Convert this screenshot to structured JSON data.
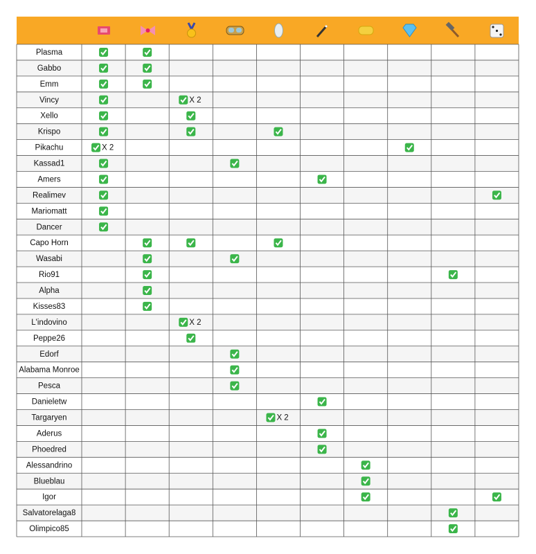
{
  "table": {
    "rows": [
      {
        "name": "Plasma",
        "cells": [
          true,
          true,
          null,
          null,
          null,
          null,
          null,
          null,
          null,
          null
        ]
      },
      {
        "name": "Gabbo",
        "cells": [
          true,
          true,
          null,
          null,
          null,
          null,
          null,
          null,
          null,
          null
        ]
      },
      {
        "name": "Emm",
        "cells": [
          true,
          true,
          null,
          null,
          null,
          null,
          null,
          null,
          null,
          null
        ]
      },
      {
        "name": "Vincy",
        "cells": [
          true,
          null,
          "X 2",
          null,
          null,
          null,
          null,
          null,
          null,
          null
        ]
      },
      {
        "name": "Xello",
        "cells": [
          true,
          null,
          true,
          null,
          null,
          null,
          null,
          null,
          null,
          null
        ]
      },
      {
        "name": "Krispo",
        "cells": [
          true,
          null,
          true,
          null,
          true,
          null,
          null,
          null,
          null,
          null
        ]
      },
      {
        "name": "Pikachu",
        "cells": [
          "X 2",
          null,
          null,
          null,
          null,
          null,
          null,
          true,
          null,
          null
        ]
      },
      {
        "name": "Kassad1",
        "cells": [
          true,
          null,
          null,
          true,
          null,
          null,
          null,
          null,
          null,
          null
        ]
      },
      {
        "name": "Amers",
        "cells": [
          true,
          null,
          null,
          null,
          null,
          true,
          null,
          null,
          null,
          null
        ]
      },
      {
        "name": "Realimev",
        "cells": [
          true,
          null,
          null,
          null,
          null,
          null,
          null,
          null,
          null,
          true
        ]
      },
      {
        "name": "Mariomatt",
        "cells": [
          true,
          null,
          null,
          null,
          null,
          null,
          null,
          null,
          null,
          null
        ]
      },
      {
        "name": "Dancer",
        "cells": [
          true,
          null,
          null,
          null,
          null,
          null,
          null,
          null,
          null,
          null
        ]
      },
      {
        "name": "Capo Horn",
        "cells": [
          null,
          true,
          true,
          null,
          true,
          null,
          null,
          null,
          null,
          null
        ]
      },
      {
        "name": "Wasabi",
        "cells": [
          null,
          true,
          null,
          true,
          null,
          null,
          null,
          null,
          null,
          null
        ]
      },
      {
        "name": "Rio91",
        "cells": [
          null,
          true,
          null,
          null,
          null,
          null,
          null,
          null,
          true,
          null
        ]
      },
      {
        "name": "Alpha",
        "cells": [
          null,
          true,
          null,
          null,
          null,
          null,
          null,
          null,
          null,
          null
        ]
      },
      {
        "name": "Kisses83",
        "cells": [
          null,
          true,
          null,
          null,
          null,
          null,
          null,
          null,
          null,
          null
        ]
      },
      {
        "name": "L'indovino",
        "cells": [
          null,
          null,
          "X 2",
          null,
          null,
          null,
          null,
          null,
          null,
          null
        ]
      },
      {
        "name": "Peppe26",
        "cells": [
          null,
          null,
          true,
          null,
          null,
          null,
          null,
          null,
          null,
          null
        ]
      },
      {
        "name": "Edorf",
        "cells": [
          null,
          null,
          null,
          true,
          null,
          null,
          null,
          null,
          null,
          null
        ]
      },
      {
        "name": "Alabama Monroe",
        "cells": [
          null,
          null,
          null,
          true,
          null,
          null,
          null,
          null,
          null,
          null
        ]
      },
      {
        "name": "Pesca",
        "cells": [
          null,
          null,
          null,
          true,
          null,
          null,
          null,
          null,
          null,
          null
        ]
      },
      {
        "name": "Danieletw",
        "cells": [
          null,
          null,
          null,
          null,
          null,
          true,
          null,
          null,
          null,
          null
        ]
      },
      {
        "name": "Targaryen",
        "cells": [
          null,
          null,
          null,
          null,
          "X 2",
          null,
          null,
          null,
          null,
          null
        ]
      },
      {
        "name": "Aderus",
        "cells": [
          null,
          null,
          null,
          null,
          null,
          true,
          null,
          null,
          null,
          null
        ]
      },
      {
        "name": "Phoedred",
        "cells": [
          null,
          null,
          null,
          null,
          null,
          true,
          null,
          null,
          null,
          null
        ]
      },
      {
        "name": "Alessandrino",
        "cells": [
          null,
          null,
          null,
          null,
          null,
          null,
          true,
          null,
          null,
          null
        ]
      },
      {
        "name": "Blueblau",
        "cells": [
          null,
          null,
          null,
          null,
          null,
          null,
          true,
          null,
          null,
          null
        ]
      },
      {
        "name": "Igor",
        "cells": [
          null,
          null,
          null,
          null,
          null,
          null,
          true,
          null,
          null,
          true
        ]
      },
      {
        "name": "Salvatorelaga8",
        "cells": [
          null,
          null,
          null,
          null,
          null,
          null,
          null,
          null,
          true,
          null
        ]
      },
      {
        "name": "Olimpico85",
        "cells": [
          null,
          null,
          null,
          null,
          null,
          null,
          null,
          null,
          true,
          null
        ]
      }
    ]
  }
}
